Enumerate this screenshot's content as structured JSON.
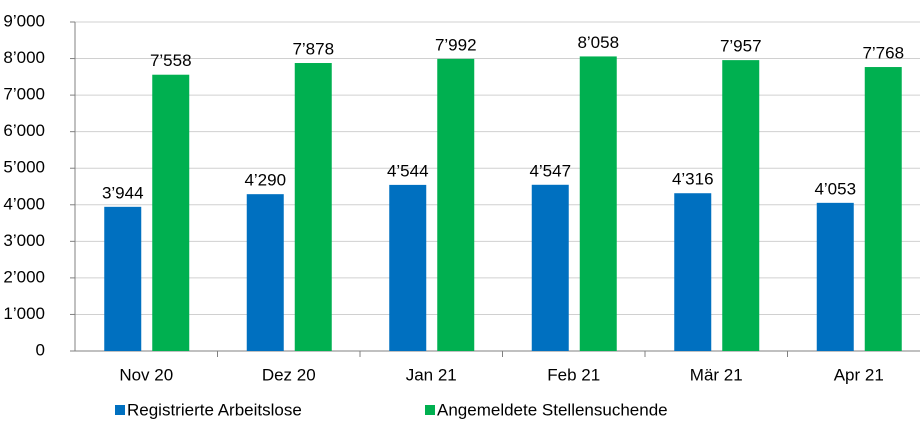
{
  "chart_data": {
    "type": "bar",
    "categories": [
      "Nov 20",
      "Dez 20",
      "Jan 21",
      "Feb 21",
      "Mär 21",
      "Apr 21"
    ],
    "series": [
      {
        "name": "Registrierte Arbeitslose",
        "color": "#0070c0",
        "values": [
          3944,
          4290,
          4544,
          4547,
          4316,
          4053
        ],
        "value_labels": [
          "3’944",
          "4’290",
          "4’544",
          "4’547",
          "4’316",
          "4’053"
        ]
      },
      {
        "name": "Angemeldete Stellensuchende",
        "color": "#00b050",
        "values": [
          7558,
          7878,
          7992,
          8058,
          7957,
          7768
        ],
        "value_labels": [
          "7’558",
          "7’878",
          "7’992",
          "8’058",
          "7’957",
          "7’768"
        ]
      }
    ],
    "ylim": [
      0,
      9000
    ],
    "yticks": [
      0,
      {
        "value": 1000,
        "label": "1’000"
      },
      {
        "value": 2000,
        "label": "2’000"
      },
      {
        "value": 3000,
        "label": "3’000"
      },
      {
        "value": 4000,
        "label": "4’000"
      },
      {
        "value": 5000,
        "label": "5’000"
      },
      {
        "value": 6000,
        "label": "6’000"
      },
      {
        "value": 7000,
        "label": "7’000"
      },
      {
        "value": 8000,
        "label": "8’000"
      },
      {
        "value": 9000,
        "label": "9’000"
      }
    ],
    "grid": true,
    "legend": "bottom"
  }
}
